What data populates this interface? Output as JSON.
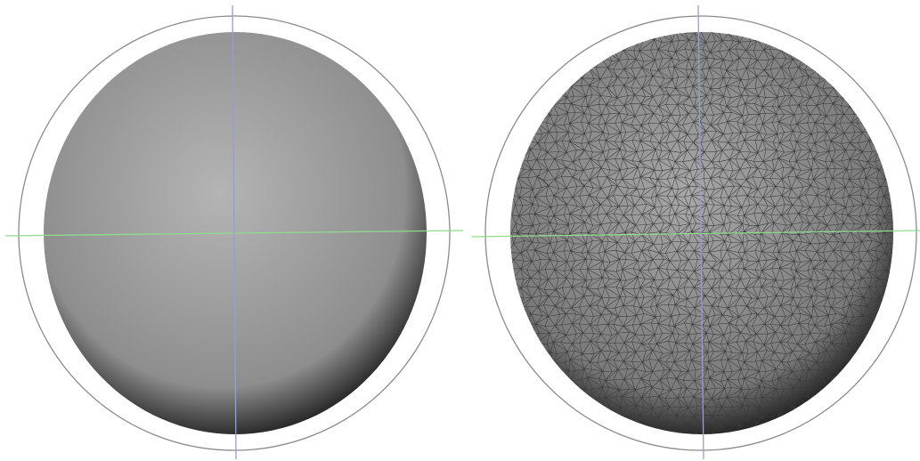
{
  "scene": {
    "background_color": "#ffffff",
    "panels": [
      {
        "id": "smooth-shaded",
        "render_mode": "smooth-shaded",
        "object": "sphere",
        "sphere_fill_light": "#b4b4b4",
        "sphere_fill_mid": "#8e8e8e",
        "sphere_fill_dark": "#1e1e1e",
        "bounding_circle_color": "#8a8a8a",
        "horizontal_axis_color": "#8fdc8f",
        "vertical_axis_color": "#9a9ad6"
      },
      {
        "id": "wireframe-shaded",
        "render_mode": "wireframe-shaded",
        "object": "sphere",
        "sphere_fill_light": "#a8a8a8",
        "sphere_fill_mid": "#7a7a7a",
        "sphere_fill_dark": "#1a1a1a",
        "wireframe_color": "#3a3a3a",
        "bounding_circle_color": "#8a8a8a",
        "horizontal_axis_color": "#8fdc8f",
        "vertical_axis_color": "#9a9ad6"
      }
    ]
  }
}
